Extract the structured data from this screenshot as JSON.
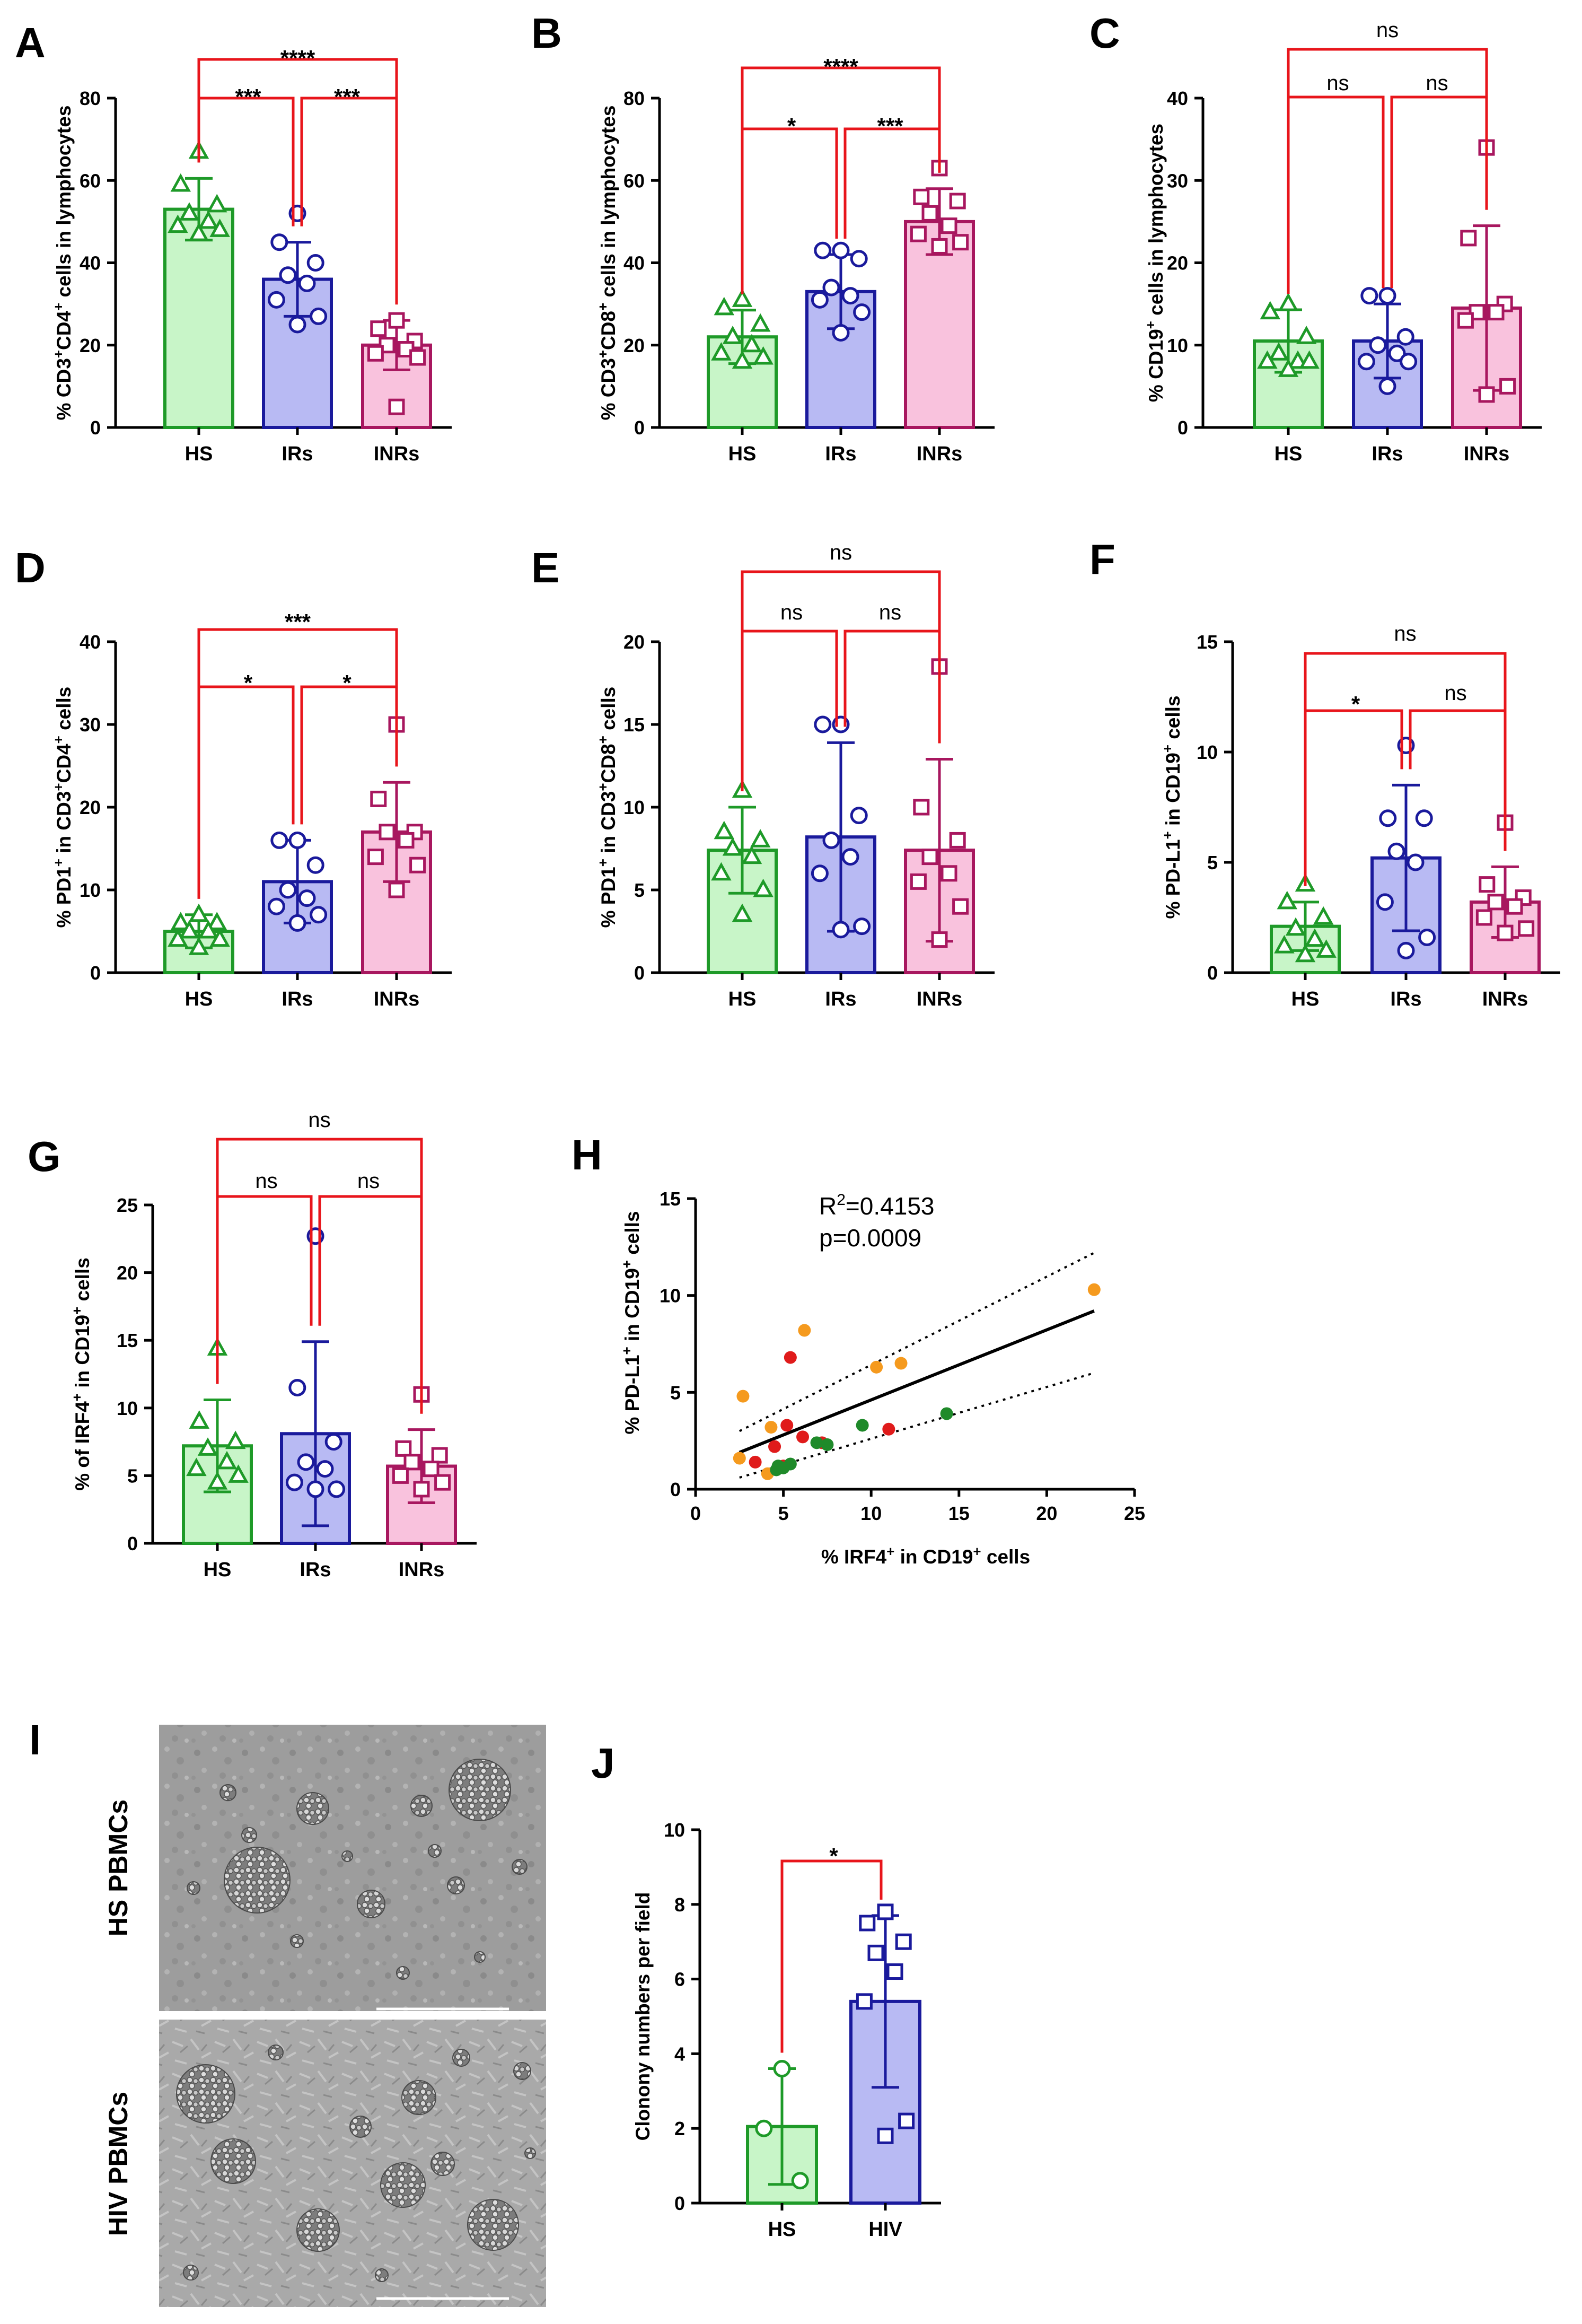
{
  "colors": {
    "hs_stroke": "#1e9a28",
    "hs_fill": "#c8f5c8",
    "irs_stroke": "#1a1a9c",
    "irs_fill": "#b8baf3",
    "inrs_stroke": "#a8175f",
    "inrs_fill": "#f9c2dd",
    "bracket": "#e8151b",
    "dot_orange": "#f59a1e",
    "dot_red": "#e01b1b",
    "dot_green": "#1f8a2a"
  },
  "chart_data": [
    {
      "id": "A",
      "panel_label": "A",
      "type": "bar",
      "ylabel": "% CD3+CD4+ cells in lymphocytes",
      "ylabel_parts": [
        "% CD3",
        "+",
        "CD4",
        "+",
        " cells in lymphocytes"
      ],
      "ylim": [
        0,
        80
      ],
      "ticks": [
        "0",
        "20",
        "40",
        "60",
        "80"
      ],
      "categories": [
        "HS",
        "IRs",
        "INRs"
      ],
      "means": [
        53,
        36,
        20
      ],
      "errors": [
        7.5,
        9,
        6
      ],
      "points": [
        [
          67,
          59,
          54,
          52,
          50,
          49,
          48,
          47
        ],
        [
          52,
          45,
          40,
          37,
          35,
          31,
          27,
          25
        ],
        [
          26,
          24,
          21,
          20,
          19,
          18,
          17,
          5
        ]
      ],
      "markers": [
        "triangle",
        "circle",
        "square"
      ],
      "brackets": [
        {
          "from": 0,
          "to": 1,
          "label": "***"
        },
        {
          "from": 1,
          "to": 2,
          "label": "***"
        },
        {
          "from": 0,
          "to": 2,
          "label": "****"
        }
      ]
    },
    {
      "id": "B",
      "panel_label": "B",
      "type": "bar",
      "ylabel": "% CD3+CD8+ cells in lymphocytes",
      "ylabel_parts": [
        "% CD3",
        "+",
        "CD8",
        "+",
        " cells in lymphocytes"
      ],
      "ylim": [
        0,
        80
      ],
      "ticks": [
        "0",
        "20",
        "40",
        "60",
        "80"
      ],
      "categories": [
        "HS",
        "IRs",
        "INRs"
      ],
      "means": [
        22,
        33,
        50
      ],
      "errors": [
        6.5,
        9,
        8
      ],
      "points": [
        [
          31,
          29,
          25,
          22,
          20,
          18,
          17,
          16
        ],
        [
          43,
          43,
          41,
          34,
          32,
          31,
          28,
          23
        ],
        [
          63,
          56,
          55,
          52,
          49,
          47,
          45,
          44
        ]
      ],
      "markers": [
        "triangle",
        "circle",
        "square"
      ],
      "brackets": [
        {
          "from": 0,
          "to": 1,
          "label": "*"
        },
        {
          "from": 1,
          "to": 2,
          "label": "***"
        },
        {
          "from": 0,
          "to": 2,
          "label": "****"
        }
      ]
    },
    {
      "id": "C",
      "panel_label": "C",
      "type": "bar",
      "ylabel": "% CD19+ cells in lymphocytes",
      "ylabel_parts": [
        "% CD19",
        "+",
        " cells in lymphocytes"
      ],
      "ylim": [
        0,
        40
      ],
      "ticks": [
        "0",
        "10",
        "20",
        "30",
        "40"
      ],
      "categories": [
        "HS",
        "IRs",
        "INRs"
      ],
      "means": [
        10.5,
        10.5,
        14.5
      ],
      "errors": [
        3.8,
        4.5,
        10
      ],
      "points": [
        [
          15,
          14,
          11,
          9,
          8,
          8,
          8,
          7
        ],
        [
          16,
          16,
          11,
          10,
          9,
          8,
          8,
          5
        ],
        [
          34,
          23,
          15,
          14,
          14,
          13,
          5,
          4
        ]
      ],
      "markers": [
        "triangle",
        "circle",
        "square"
      ],
      "brackets": [
        {
          "from": 0,
          "to": 1,
          "label": "ns"
        },
        {
          "from": 1,
          "to": 2,
          "label": "ns"
        },
        {
          "from": 0,
          "to": 2,
          "label": "ns"
        }
      ]
    },
    {
      "id": "D",
      "panel_label": "D",
      "type": "bar",
      "ylabel": "% PD1+ in CD3+CD4+ cells",
      "ylabel_parts": [
        "% PD1",
        "+",
        " in CD3",
        "+",
        "CD4",
        "+",
        " cells"
      ],
      "ylim": [
        0,
        40
      ],
      "ticks": [
        "0",
        "10",
        "20",
        "30",
        "40"
      ],
      "categories": [
        "HS",
        "IRs",
        "INRs"
      ],
      "means": [
        5,
        11,
        17
      ],
      "errors": [
        2,
        5,
        6
      ],
      "points": [
        [
          7,
          6,
          6,
          5,
          5,
          4,
          4,
          3
        ],
        [
          16,
          16,
          13,
          10,
          9,
          8,
          7,
          6
        ],
        [
          30,
          21,
          17,
          17,
          16,
          14,
          13,
          10
        ]
      ],
      "markers": [
        "triangle",
        "circle",
        "square"
      ],
      "brackets": [
        {
          "from": 0,
          "to": 1,
          "label": "*"
        },
        {
          "from": 1,
          "to": 2,
          "label": "*"
        },
        {
          "from": 0,
          "to": 2,
          "label": "***"
        }
      ]
    },
    {
      "id": "E",
      "panel_label": "E",
      "type": "bar",
      "ylabel": "% PD1+ in CD3+CD8+ cells",
      "ylabel_parts": [
        "% PD1",
        "+",
        " in CD3",
        "+",
        "CD8",
        "+",
        " cells"
      ],
      "ylim": [
        0,
        20
      ],
      "ticks": [
        "0",
        "5",
        "10",
        "15",
        "20"
      ],
      "categories": [
        "HS",
        "IRs",
        "INRs"
      ],
      "means": [
        7.4,
        8.2,
        7.4
      ],
      "errors": [
        2.6,
        5.7,
        5.5
      ],
      "points": [
        [
          11,
          8.5,
          8,
          7.5,
          7,
          6,
          5,
          3.5
        ],
        [
          15,
          15,
          9.5,
          8,
          7,
          6,
          2.8,
          2.6
        ],
        [
          18.5,
          10,
          8,
          7,
          6,
          5.5,
          4,
          2
        ]
      ],
      "markers": [
        "triangle",
        "circle",
        "square"
      ],
      "brackets": [
        {
          "from": 0,
          "to": 1,
          "label": "ns"
        },
        {
          "from": 1,
          "to": 2,
          "label": "ns"
        },
        {
          "from": 0,
          "to": 2,
          "label": "ns"
        }
      ]
    },
    {
      "id": "F",
      "panel_label": "F",
      "type": "bar",
      "ylabel": "% PD-L1+ in CD19+ cells",
      "ylabel_parts": [
        "% PD-L1",
        "+",
        " in CD19",
        "+",
        " cells"
      ],
      "ylim": [
        0,
        15
      ],
      "ticks": [
        "0",
        "5",
        "10",
        "15"
      ],
      "categories": [
        "HS",
        "IRs",
        "INRs"
      ],
      "means": [
        2.1,
        5.2,
        3.2
      ],
      "errors": [
        1.1,
        3.3,
        1.6
      ],
      "points": [
        [
          4,
          3.2,
          2.5,
          2,
          1.5,
          1.2,
          1,
          0.8
        ],
        [
          10.3,
          7,
          7,
          5.5,
          5,
          3.2,
          1.6,
          1
        ],
        [
          6.8,
          4,
          3.4,
          3.2,
          3,
          2.5,
          2,
          1.8
        ]
      ],
      "markers": [
        "triangle",
        "circle",
        "square"
      ],
      "brackets": [
        {
          "from": 0,
          "to": 1,
          "label": "*"
        },
        {
          "from": 1,
          "to": 2,
          "label": "ns"
        },
        {
          "from": 0,
          "to": 2,
          "label": "ns"
        }
      ]
    },
    {
      "id": "G",
      "panel_label": "G",
      "type": "bar",
      "ylabel": "% of IRF4+ in CD19+ cells",
      "ylabel_parts": [
        "% of IRF4",
        "+",
        " in CD19",
        "+",
        " cells"
      ],
      "ylim": [
        0,
        25
      ],
      "ticks": [
        "0",
        "5",
        "10",
        "15",
        "20",
        "25"
      ],
      "categories": [
        "HS",
        "IRs",
        "INRs"
      ],
      "means": [
        7.2,
        8.1,
        5.7
      ],
      "errors": [
        3.4,
        6.8,
        2.7
      ],
      "points": [
        [
          14.4,
          9,
          7.5,
          7,
          6,
          5.5,
          5,
          4.5
        ],
        [
          22.7,
          11.5,
          7.5,
          6,
          5.5,
          4.5,
          4,
          4
        ],
        [
          11,
          7,
          6.5,
          6,
          5.5,
          5,
          4.5,
          4
        ]
      ],
      "markers": [
        "triangle",
        "circle",
        "square"
      ],
      "brackets": [
        {
          "from": 0,
          "to": 1,
          "label": "ns"
        },
        {
          "from": 1,
          "to": 2,
          "label": "ns"
        },
        {
          "from": 0,
          "to": 2,
          "label": "ns"
        }
      ]
    },
    {
      "id": "H",
      "panel_label": "H",
      "type": "scatter",
      "xlabel": "% IRF4+ in CD19+ cells",
      "xlabel_parts": [
        "% IRF4",
        "+",
        " in CD19",
        "+",
        " cells"
      ],
      "ylabel": "% PD-L1+ in CD19+ cells",
      "ylabel_parts": [
        "% PD-L1",
        "+",
        " in CD19",
        "+",
        " cells"
      ],
      "xlim": [
        0,
        25
      ],
      "ylim": [
        0,
        15
      ],
      "xticks": [
        "0",
        "5",
        "10",
        "15",
        "20",
        "25"
      ],
      "yticks": [
        "0",
        "5",
        "10",
        "15"
      ],
      "stat_r2_prefix": "R",
      "stat_r2_sup": "2",
      "stat_r2_value": "=0.4153",
      "stat_p": "p=0.0009",
      "fit_line": {
        "x": [
          2.5,
          22.7
        ],
        "y": [
          1.9,
          9.2
        ]
      },
      "ci_upper": {
        "x": [
          2.5,
          22.7
        ],
        "y": [
          3.0,
          12.2
        ]
      },
      "ci_lower": {
        "x": [
          2.5,
          22.7
        ],
        "y": [
          0.6,
          6.0
        ]
      },
      "series": [
        {
          "name": "orange",
          "color_key": "dot_orange",
          "x": [
            6.2,
            2.7,
            10.3,
            11.7,
            22.7,
            4.3,
            2.5,
            4.1
          ],
          "y": [
            8.2,
            4.8,
            6.3,
            6.5,
            10.3,
            3.2,
            1.6,
            0.8
          ]
        },
        {
          "name": "red",
          "color_key": "dot_red",
          "x": [
            5.4,
            6.1,
            4.5,
            5.2,
            3.4,
            7.2,
            11.0,
            5.0
          ],
          "y": [
            6.8,
            2.7,
            2.2,
            3.3,
            1.4,
            2.4,
            3.1,
            1.2
          ]
        },
        {
          "name": "green",
          "color_key": "dot_green",
          "x": [
            14.3,
            9.5,
            6.9,
            7.5,
            5.4,
            4.7,
            5.0,
            4.6
          ],
          "y": [
            3.9,
            3.3,
            2.4,
            2.3,
            1.3,
            1.2,
            1.1,
            1.0
          ]
        }
      ]
    },
    {
      "id": "J",
      "panel_label": "J",
      "type": "bar",
      "ylabel": "Clonony numbers per field",
      "ylim": [
        0,
        10
      ],
      "ticks": [
        "0",
        "2",
        "4",
        "6",
        "8",
        "10"
      ],
      "categories": [
        "HS",
        "HIV"
      ],
      "means": [
        2.05,
        5.4
      ],
      "errors": [
        1.55,
        2.3
      ],
      "points": [
        [
          3.6,
          2.0,
          0.6
        ],
        [
          7.8,
          7.5,
          7.0,
          6.7,
          6.2,
          5.4,
          2.2,
          1.8
        ]
      ],
      "markers": [
        "circle",
        "square"
      ],
      "brackets": [
        {
          "from": 0,
          "to": 1,
          "label": "*"
        }
      ]
    }
  ],
  "images": {
    "panel_label": "I",
    "top_label": "HS PBMCs",
    "bottom_label": "HIV PBMCs"
  }
}
